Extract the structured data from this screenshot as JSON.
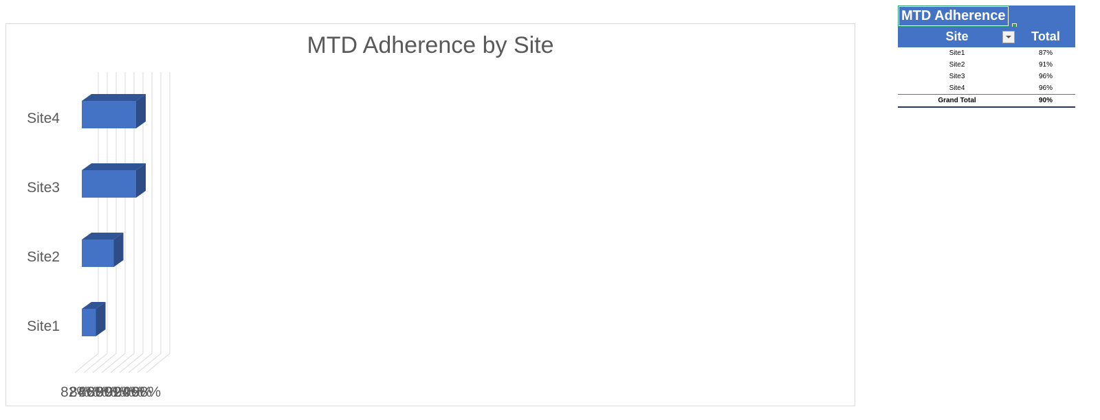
{
  "chart_data": {
    "type": "bar",
    "title": "MTD Adherence by Site",
    "categories": [
      "Site1",
      "Site2",
      "Site3",
      "Site4"
    ],
    "values": [
      0.87,
      0.91,
      0.96,
      0.96
    ],
    "xlim": [
      0.82,
      0.98
    ],
    "x_ticks": [
      "82%",
      "84%",
      "86%",
      "88%",
      "90%",
      "92%",
      "94%",
      "96%",
      "98%"
    ],
    "grid": true,
    "legend": "none",
    "style": "3d-clustered-bar",
    "colors": {
      "bar_front": "#4472c4",
      "bar_top": "#2f5597",
      "bar_side": "#2e4d87",
      "grid": "#d9d9d9",
      "text": "#595959"
    }
  },
  "pivot": {
    "title": "MTD Adherence",
    "header_site": "Site",
    "header_total": "Total",
    "rows": [
      {
        "site": "Site1",
        "total": "87%"
      },
      {
        "site": "Site2",
        "total": "91%"
      },
      {
        "site": "Site3",
        "total": "96%"
      },
      {
        "site": "Site4",
        "total": "96%"
      }
    ],
    "grand_total_label": "Grand Total",
    "grand_total_value": "90%",
    "filter_icon": "dropdown-arrow-icon",
    "colors": {
      "header": "#4472c4",
      "selection": "#21a366"
    }
  }
}
